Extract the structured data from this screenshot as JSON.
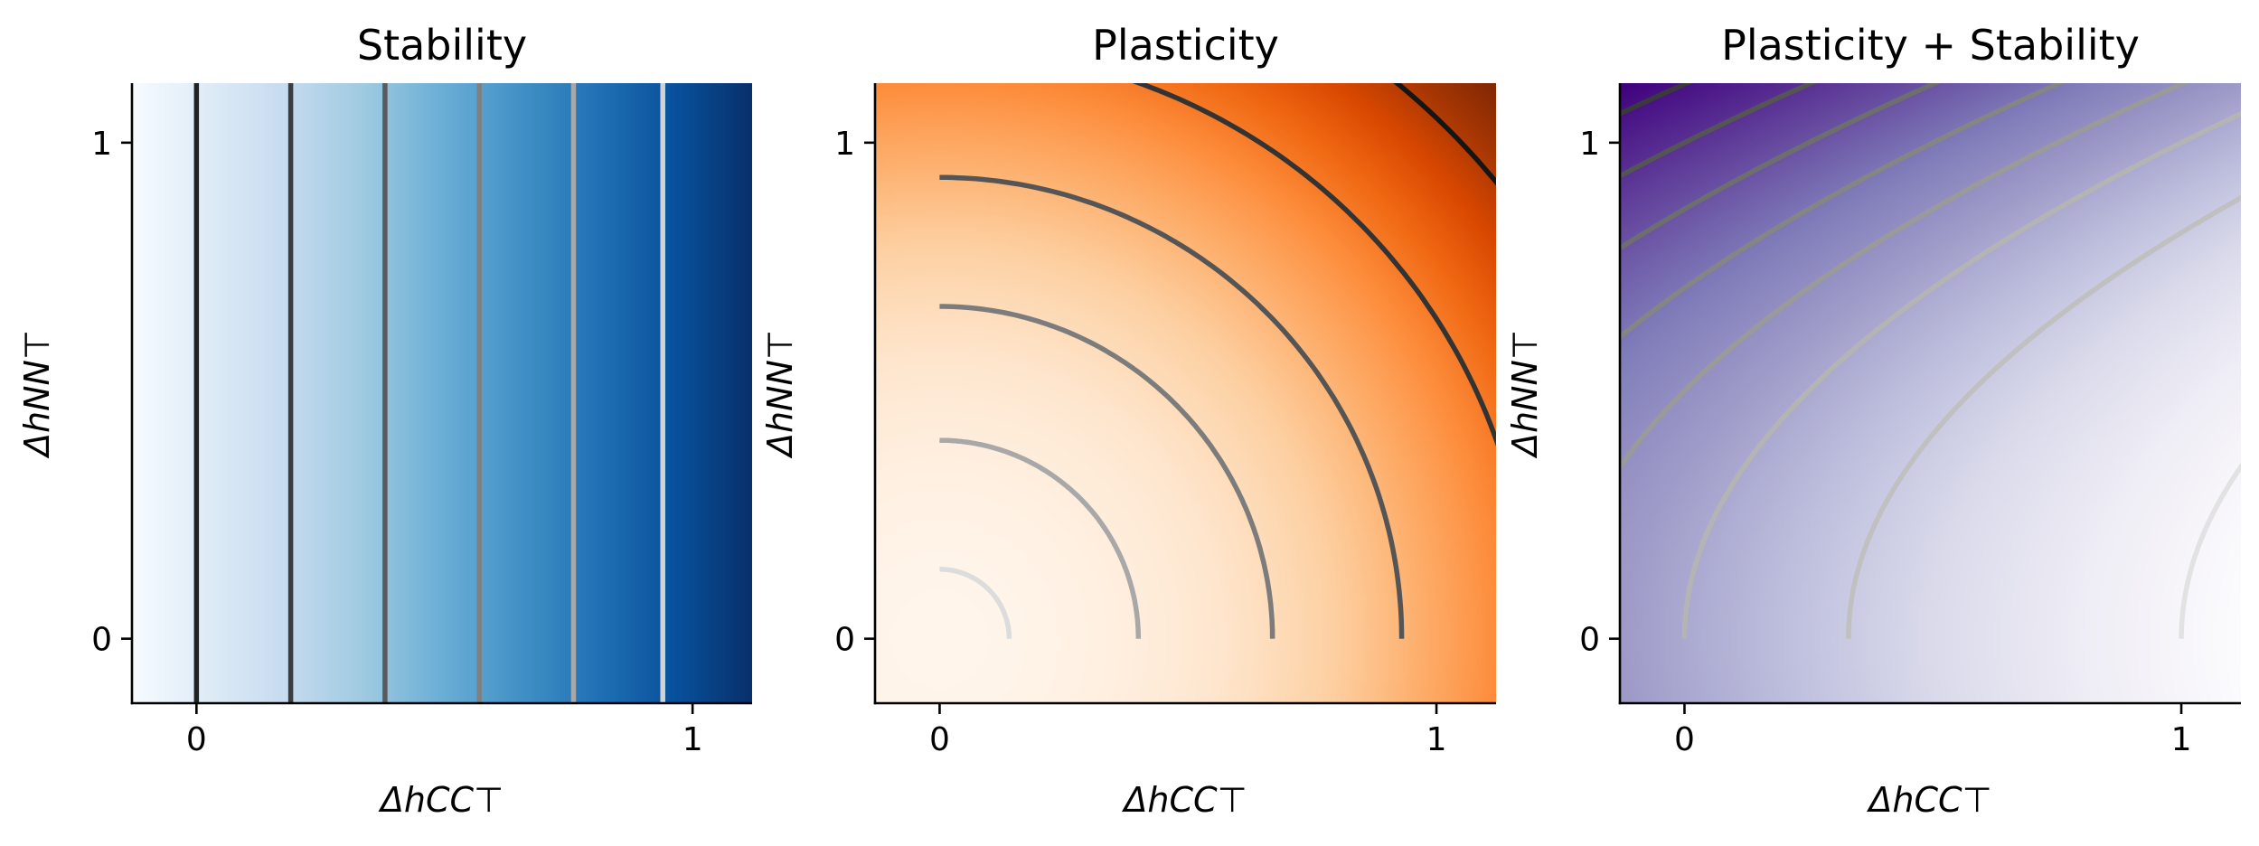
{
  "chart_data": [
    {
      "type": "heatmap",
      "title": "Stability",
      "xlabel": "ΔhCC⊤",
      "ylabel": "ΔhNN⊤",
      "xlim": [
        -0.13,
        1.12
      ],
      "ylim": [
        -0.13,
        1.12
      ],
      "xticks": [
        "0",
        "1"
      ],
      "yticks": [
        "0",
        "1"
      ],
      "grid": false,
      "colormap": [
        "#08306b",
        "#08519c",
        "#2171b5",
        "#4292c6",
        "#6baed6",
        "#9ecae1",
        "#c6dbef",
        "#deebf7",
        "#f7fbff"
      ],
      "function": "-x",
      "contours": [
        {
          "x": 0.0,
          "color": "#222222"
        },
        {
          "x": 0.19,
          "color": "#3d3d3d"
        },
        {
          "x": 0.38,
          "color": "#5a5a5a"
        },
        {
          "x": 0.57,
          "color": "#808080"
        },
        {
          "x": 0.76,
          "color": "#a8a8a8"
        },
        {
          "x": 0.94,
          "color": "#d2d2d2"
        }
      ]
    },
    {
      "type": "heatmap",
      "title": "Plasticity",
      "xlabel": "ΔhCC⊤",
      "ylabel": "ΔhNN⊤",
      "xlim": [
        -0.13,
        1.12
      ],
      "ylim": [
        -0.13,
        1.12
      ],
      "xticks": [
        "0",
        "1"
      ],
      "yticks": [
        "0",
        "1"
      ],
      "grid": false,
      "colormap": [
        "#fff5eb",
        "#fee6ce",
        "#fdd0a2",
        "#fdae6b",
        "#fd8d3c",
        "#f16913",
        "#d94801",
        "#a63603",
        "#7f2704"
      ],
      "function": "x^2 + y^2",
      "contours": [
        {
          "r": 0.14,
          "color": "#dcdcdc"
        },
        {
          "r": 0.4,
          "color": "#a8a8a8"
        },
        {
          "r": 0.67,
          "color": "#7c7c7c"
        },
        {
          "r": 0.93,
          "color": "#555555"
        },
        {
          "r": 1.19,
          "color": "#333333"
        },
        {
          "r": 1.45,
          "color": "#151515"
        }
      ]
    },
    {
      "type": "heatmap",
      "title": "Plasticity + Stability",
      "xlabel": "ΔhCC⊤",
      "ylabel": "ΔhNN⊤",
      "xlim": [
        -0.13,
        1.12
      ],
      "ylim": [
        -0.13,
        1.12
      ],
      "xticks": [
        "0",
        "1"
      ],
      "yticks": [
        "0",
        "1"
      ],
      "grid": false,
      "colormap": [
        "#fcfbfd",
        "#efedf5",
        "#dadaeb",
        "#bcbddc",
        "#9e9ac8",
        "#807dba",
        "#6a51a3",
        "#54278f",
        "#3f007d"
      ],
      "function": "y^2 - x",
      "contours": [
        {
          "c": -1.0,
          "color": "#e2e2e2"
        },
        {
          "c": -0.33,
          "color": "#c0c0c0"
        },
        {
          "c": 0.0,
          "color": "#b4b4b4"
        },
        {
          "c": 0.25,
          "color": "#9a9a9a"
        },
        {
          "c": 0.5,
          "color": "#858585"
        },
        {
          "c": 0.75,
          "color": "#6e6e6e"
        },
        {
          "c": 1.0,
          "color": "#555555"
        },
        {
          "c": 1.25,
          "color": "#3a3a3a"
        }
      ]
    }
  ]
}
